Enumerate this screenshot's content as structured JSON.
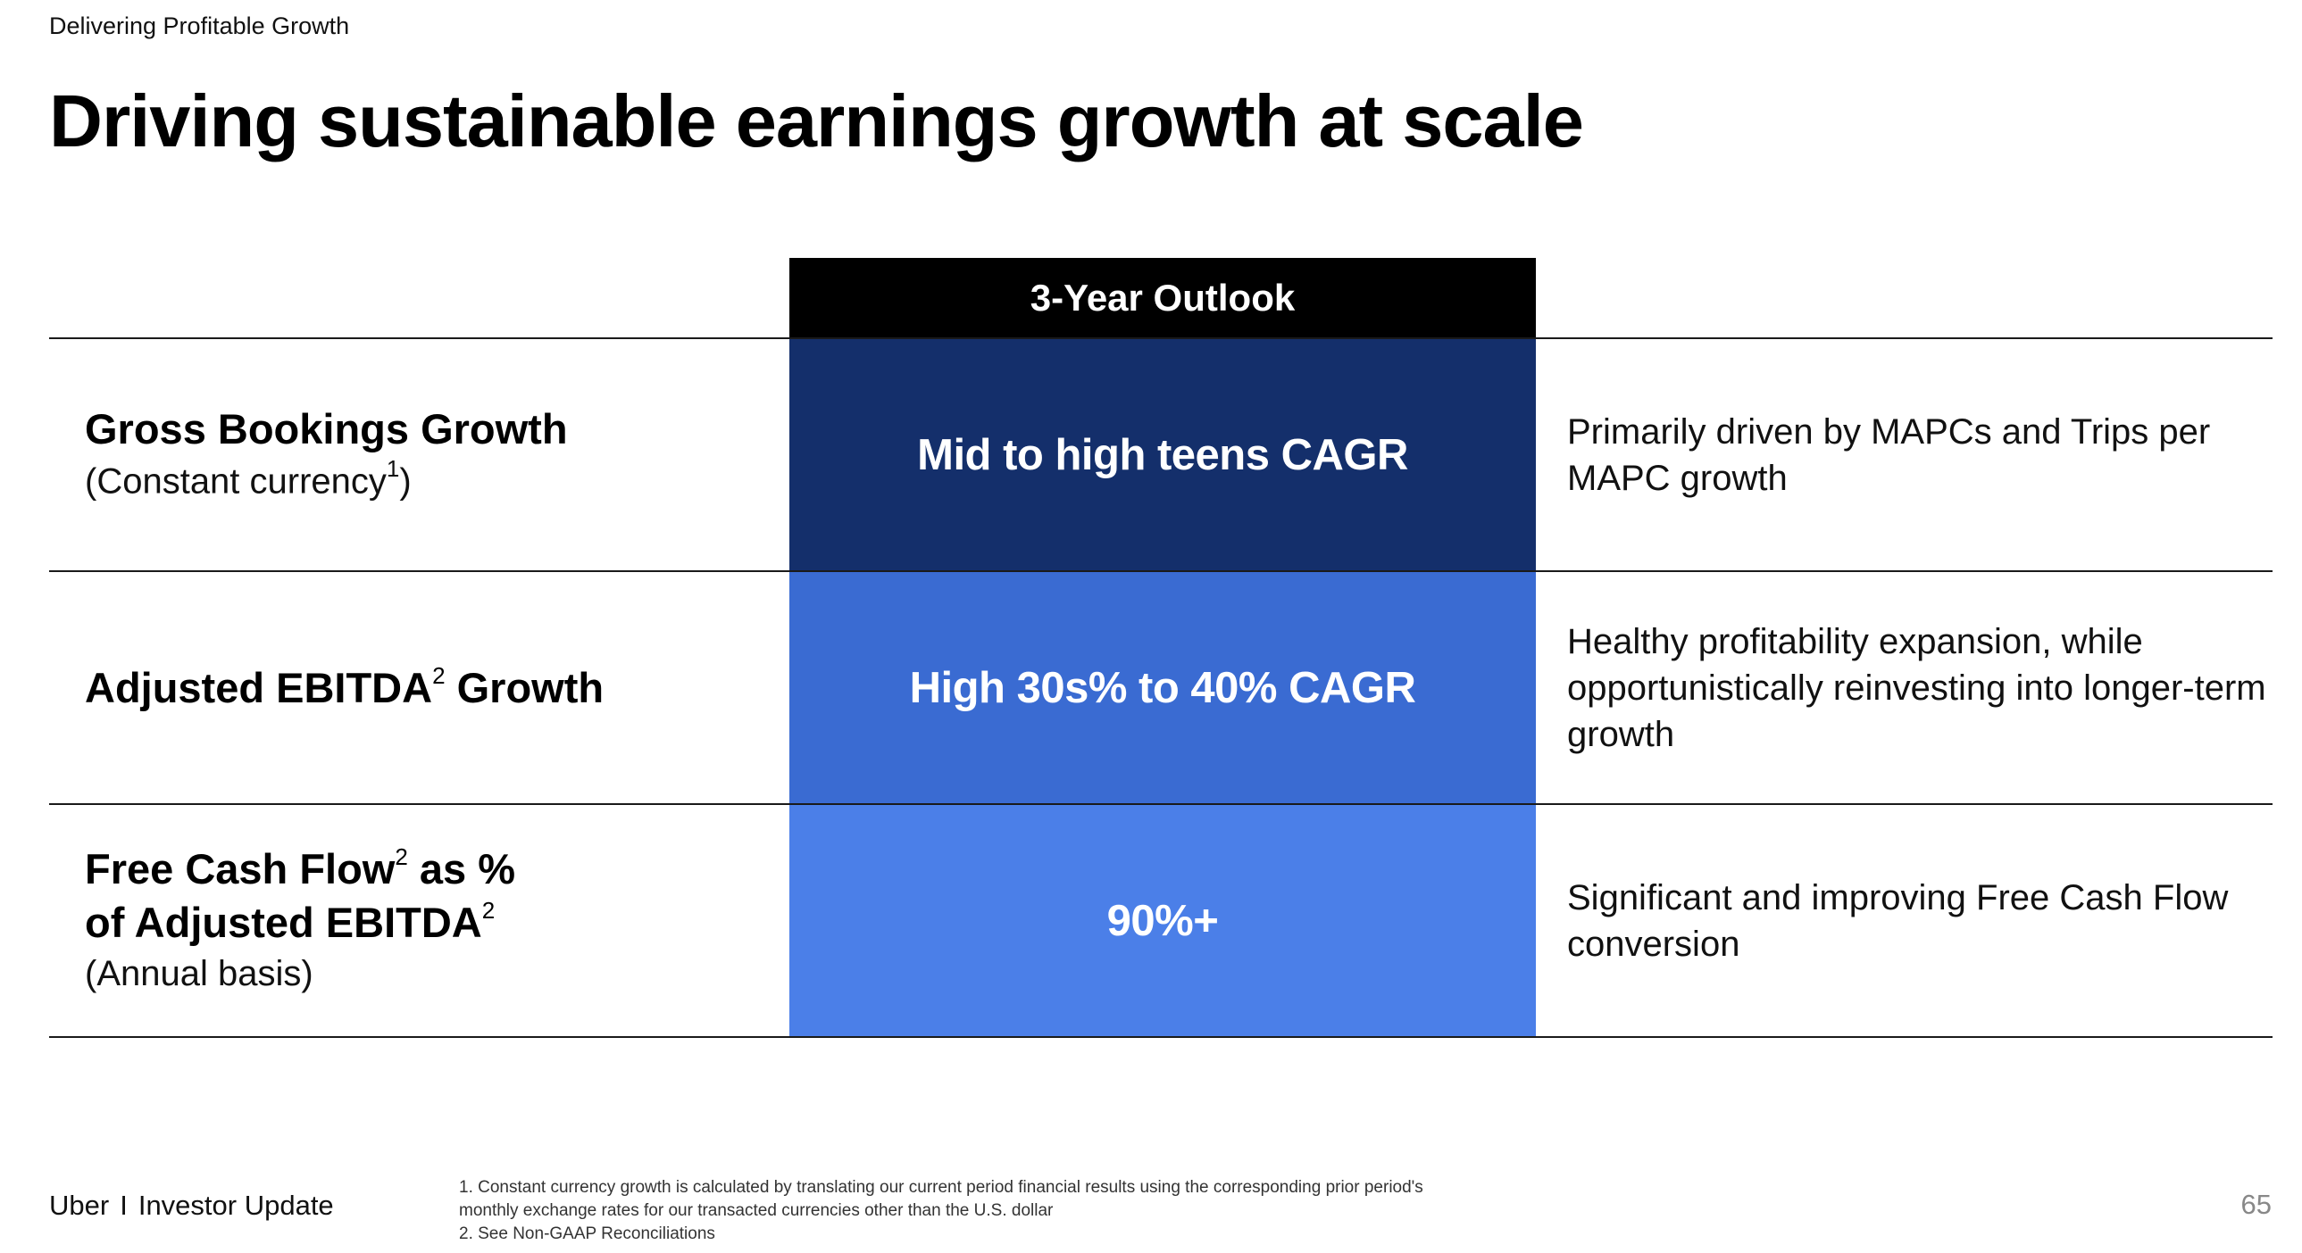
{
  "header": {
    "kicker": "Delivering Profitable Growth",
    "title": "Driving sustainable earnings growth at scale"
  },
  "table": {
    "column_header": "3-Year Outlook",
    "rows": [
      {
        "label_lines": [
          {
            "text": "Gross Bookings Growth",
            "sup": ""
          }
        ],
        "sublabel": {
          "pre": "(Constant currency",
          "sup": "1",
          "post": ")"
        },
        "value": "Mid to high teens CAGR",
        "description": "Primarily driven by MAPCs and Trips per MAPC growth",
        "color": "#142f6b"
      },
      {
        "label_lines": [
          {
            "text": "Adjusted EBITDA",
            "sup": "2",
            "after": " Growth"
          }
        ],
        "value": "High 30s% to 40% CAGR",
        "description": "Healthy profitability expansion, while opportunistically reinvesting into longer-term growth",
        "color": "#3a6bd2"
      },
      {
        "label_lines": [
          {
            "text": "Free Cash Flow",
            "sup": "2",
            "after": " as %"
          },
          {
            "text": "of Adjusted EBITDA",
            "sup": "2",
            "after": ""
          }
        ],
        "sublabel_plain": "(Annual basis)",
        "value": "90%+",
        "description": "Significant and improving Free Cash Flow conversion",
        "color": "#4b7fe8"
      }
    ]
  },
  "footer": {
    "brand": "Uber",
    "separator": "I",
    "section": "Investor Update",
    "footnotes": [
      "1. Constant currency growth is calculated by translating our current period financial results using the corresponding prior period's",
      "monthly exchange rates for our transacted currencies other than the U.S. dollar",
      "2. See Non-GAAP Reconciliations"
    ],
    "page_number": "65"
  }
}
